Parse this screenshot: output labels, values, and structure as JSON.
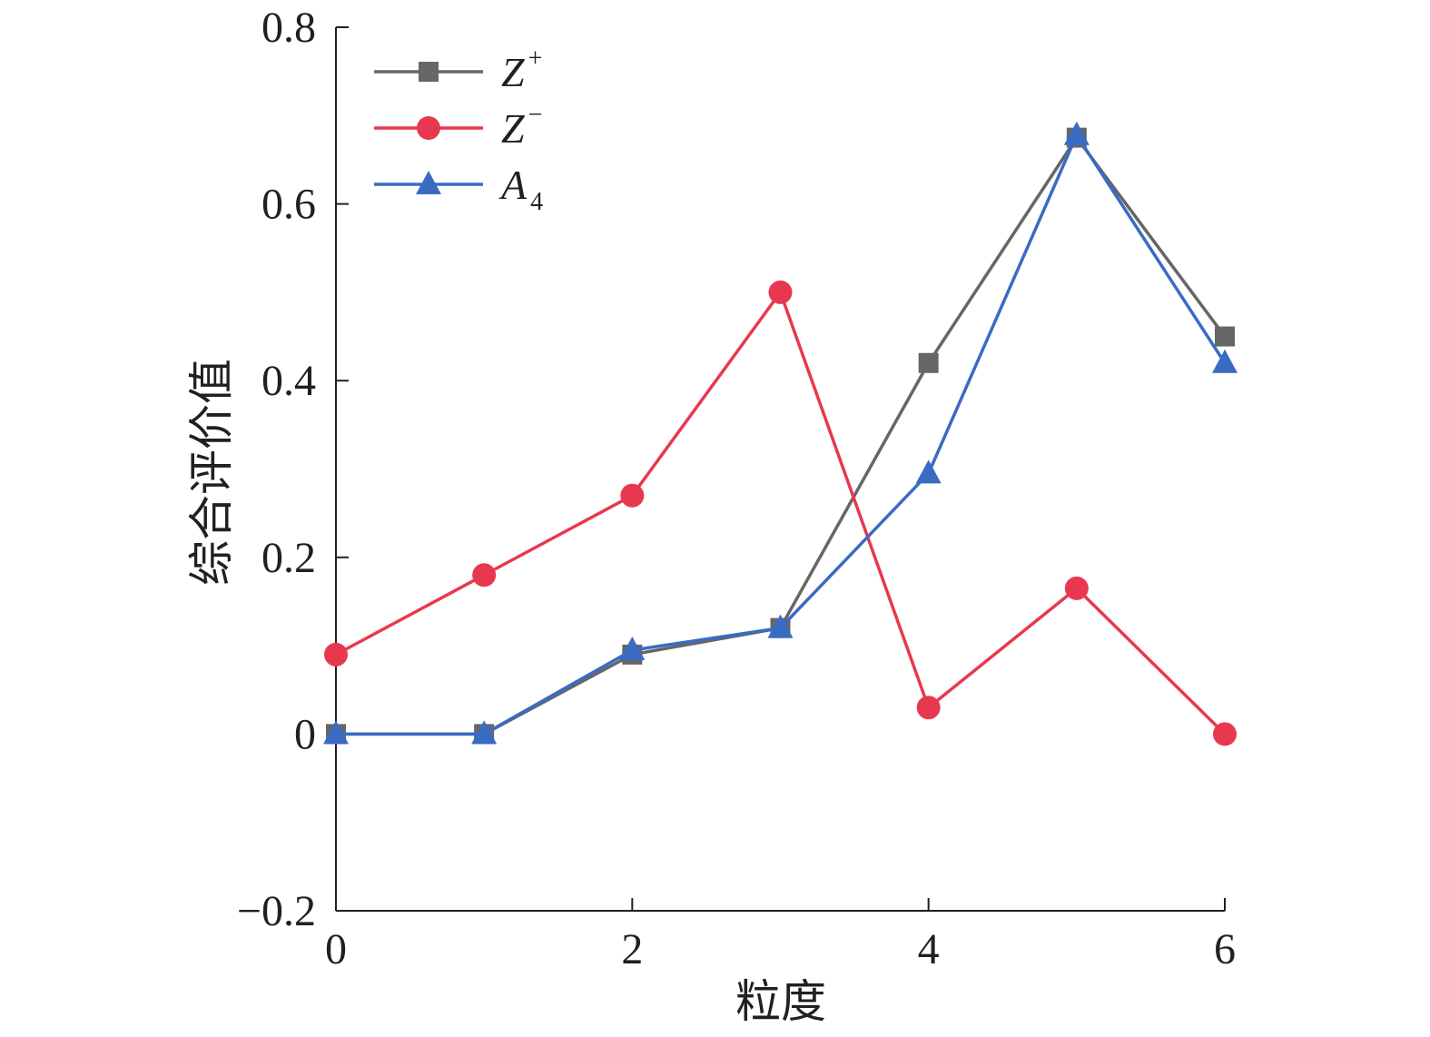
{
  "chart_data": {
    "type": "line",
    "title": "",
    "xlabel": "粒度",
    "ylabel": "综合评价值",
    "x": [
      0,
      1,
      2,
      3,
      4,
      5,
      6
    ],
    "xticks": [
      0,
      2,
      4,
      6
    ],
    "xtick_labels": [
      "0",
      "2",
      "4",
      "6"
    ],
    "yticks": [
      -0.2,
      0,
      0.2,
      0.4,
      0.6,
      0.8
    ],
    "ytick_labels": [
      "−0.2",
      "0",
      "0.2",
      "0.4",
      "0.6",
      "0.8"
    ],
    "xlim": [
      0,
      6
    ],
    "ylim": [
      -0.2,
      0.8
    ],
    "grid": false,
    "legend_position": "top-left",
    "series": [
      {
        "name": "Z+",
        "name_base": "Z",
        "name_mark": "+",
        "mark_type": "sup",
        "color": "#666666",
        "marker": "square",
        "values": [
          0,
          0,
          0.09,
          0.12,
          0.42,
          0.675,
          0.45
        ]
      },
      {
        "name": "Z−",
        "name_base": "Z",
        "name_mark": "−",
        "mark_type": "sup",
        "color": "#e8384f",
        "marker": "circle",
        "values": [
          0.09,
          0.18,
          0.27,
          0.5,
          0.03,
          0.165,
          0
        ]
      },
      {
        "name": "A4",
        "name_base": "A",
        "name_mark": "4",
        "mark_type": "sub",
        "color": "#3a6bc3",
        "marker": "triangle",
        "values": [
          0,
          0,
          0.095,
          0.12,
          0.295,
          0.678,
          0.42
        ]
      }
    ]
  }
}
